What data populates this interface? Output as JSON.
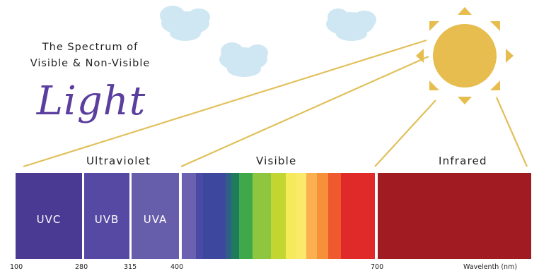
{
  "title": {
    "line1": "The Spectrum of",
    "line2": "Visible & Non-Visible",
    "script": "Light"
  },
  "sections": {
    "ultraviolet": "Ultraviolet",
    "visible": "Visible",
    "infrared": "Infrared"
  },
  "bands": {
    "uvc": "UVC",
    "uvb": "UVB",
    "uva": "UVA"
  },
  "wavelength_ticks": {
    "t100": "100",
    "t280": "280",
    "t315": "315",
    "t400": "400",
    "t700": "700"
  },
  "axis_unit": "Wavelenth (nm)",
  "colors": {
    "uvc": "#4a3a93",
    "uvb": "#5649a3",
    "uva": "#665eab",
    "infrared": "#a01c22",
    "sun": "#e6bd4e",
    "cloud": "#cfe7f2",
    "ray_line": "#e1c05a",
    "script_title": "#5a3f9f"
  },
  "visible_gradient_colors": [
    "#6a61b1",
    "#4a4aa6",
    "#3d479e",
    "#2f5e88",
    "#1f7b5c",
    "#3ea84b",
    "#8ec63f",
    "#c1d631",
    "#f4ea5a",
    "#fbe96a",
    "#fbb04f",
    "#f6913a",
    "#ee5a2e",
    "#e02a2a"
  ]
}
